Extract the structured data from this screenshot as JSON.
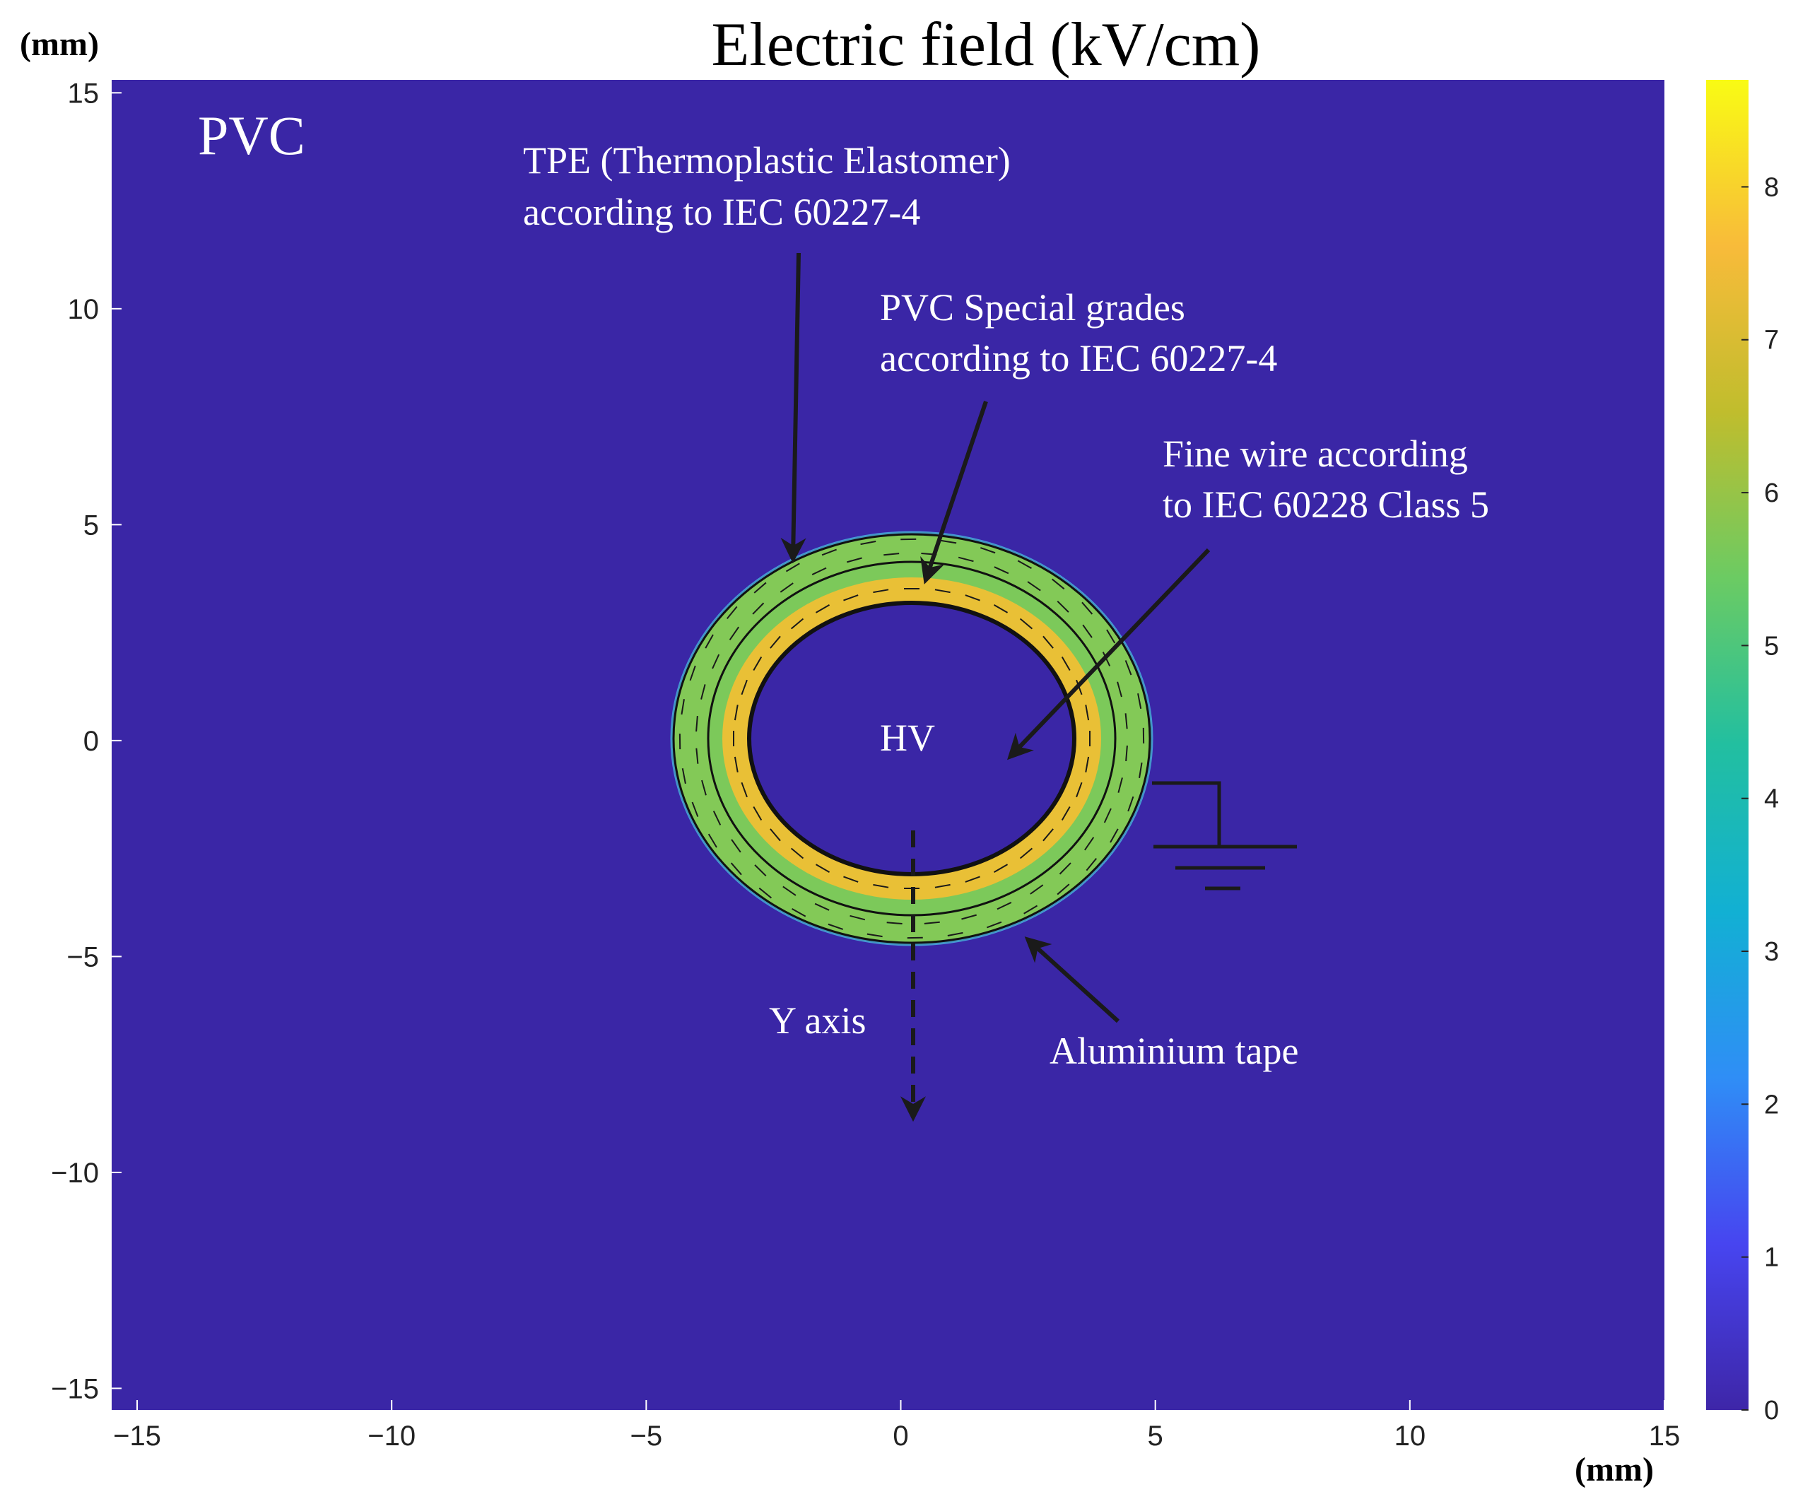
{
  "chart_data": {
    "type": "heatmap",
    "title": "Electric field (kV/cm)",
    "xlabel": "(mm)",
    "ylabel": "(mm)",
    "xlim": [
      -15.5,
      15
    ],
    "ylim": [
      -15.5,
      15.3
    ],
    "xticks": [
      -15,
      -10,
      -5,
      0,
      5,
      10,
      15
    ],
    "yticks": [
      15,
      10,
      5,
      0,
      -5,
      -10,
      -15
    ],
    "colorbar": {
      "min": 0,
      "max": 8.7,
      "ticks": [
        0,
        1,
        2,
        3,
        4,
        5,
        6,
        7,
        8
      ]
    },
    "geometry_mm": {
      "conductor": {
        "center": [
          0,
          0
        ],
        "rx": 3.3,
        "ry": 3.3
      },
      "interface": {
        "center": [
          0,
          0
        ],
        "rx": 4.3,
        "ry": 4.3
      },
      "outer": {
        "center": [
          0,
          0
        ],
        "rx": 4.75,
        "ry": 4.75
      }
    },
    "field_kV_per_cm": {
      "outside": 0,
      "conductor": 0,
      "inner_insulation_peak": 7.2,
      "inner_insulation_edge": 5.8,
      "outer_insulation": 5.2
    },
    "annotations": {
      "material": "PVC",
      "tpe": [
        "TPE (Thermoplastic Elastomer)",
        "according to IEC 60227-4"
      ],
      "pvc_special": [
        "PVC Special grades",
        "according to IEC 60227-4"
      ],
      "fine_wire": [
        "Fine wire according",
        "to IEC 60228 Class 5"
      ],
      "hv": "HV",
      "y_axis": "Y axis",
      "aluminium": "Aluminium tape"
    },
    "colors": {
      "background_field": "#3a26a6",
      "colormap": [
        "#3e26a8",
        "#4745f0",
        "#2f8ef6",
        "#12b0d3",
        "#22bfa0",
        "#6bcb63",
        "#c0bd2d",
        "#f8bb3a",
        "#f9fb14"
      ]
    }
  }
}
